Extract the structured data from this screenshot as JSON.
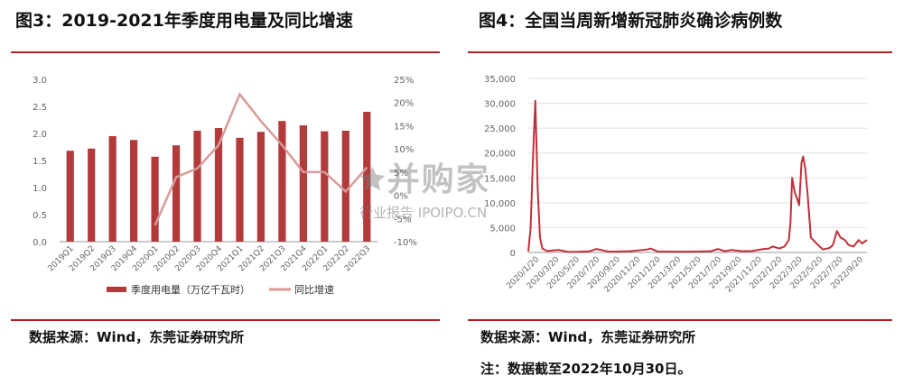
{
  "left": {
    "title": "图3：2019-2021年季度用电量及同比增速",
    "source": "数据来源：Wind，东莞证券研究所",
    "chart_data": {
      "type": "bar",
      "categories": [
        "2019Q1",
        "2019Q2",
        "2019Q3",
        "2019Q4",
        "2020Q1",
        "2020Q2",
        "2020Q3",
        "2020Q4",
        "2021Q1",
        "2021Q2",
        "2021Q3",
        "2021Q4",
        "2022Q1",
        "2022Q2",
        "2022Q3"
      ],
      "series": [
        {
          "name": "季度用电量（万亿千瓦时）",
          "type": "bar",
          "axis": "left",
          "values": [
            1.68,
            1.72,
            1.95,
            1.88,
            1.57,
            1.78,
            2.05,
            2.1,
            1.92,
            2.03,
            2.23,
            2.15,
            2.04,
            2.05,
            2.4
          ]
        },
        {
          "name": "同比增速",
          "type": "line",
          "axis": "right",
          "unit": "%",
          "values": [
            null,
            null,
            null,
            null,
            -6.5,
            3.9,
            5.8,
            10.8,
            21.8,
            16.0,
            10.8,
            5.0,
            5.0,
            0.8,
            6.0
          ]
        }
      ],
      "y_left": {
        "min": 0,
        "max": 3.0,
        "ticks": [
          "0.0",
          "0.5",
          "1.0",
          "1.5",
          "2.0",
          "2.5",
          "3.0"
        ]
      },
      "y_right": {
        "min": -10,
        "max": 25,
        "ticks": [
          "-10%",
          "-5%",
          "0%",
          "5%",
          "10%",
          "15%",
          "20%",
          "25%"
        ]
      },
      "legend": [
        "季度用电量（万亿千瓦时）",
        "同比增速"
      ],
      "colors": {
        "bar": "#b23a3a",
        "line": "#d99a9a"
      }
    }
  },
  "right": {
    "title": "图4：全国当周新增新冠肺炎确诊病例数",
    "source": "数据来源：Wind，东莞证券研究所",
    "note": "注：数据截至2022年10月30日。",
    "chart_data": {
      "type": "line",
      "x_tick_labels": [
        "2020/1/20",
        "2020/3/20",
        "2020/5/20",
        "2020/7/20",
        "2020/9/20",
        "2020/11/20",
        "2021/1/20",
        "2021/3/20",
        "2021/5/20",
        "2021/7/20",
        "2021/9/20",
        "2021/11/20",
        "2022/1/20",
        "2022/3/20",
        "2022/5/20",
        "2022/7/20",
        "2022/9/20"
      ],
      "y_ticks": [
        "0",
        "5,000",
        "10,000",
        "15,000",
        "20,000",
        "25,000",
        "30,000",
        "35,000"
      ],
      "ylim": [
        0,
        35000
      ],
      "series": [
        {
          "values": [
            [
              "2020-01-20",
              200
            ],
            [
              "2020-01-27",
              5000
            ],
            [
              "2020-02-03",
              19000
            ],
            [
              "2020-02-10",
              30500
            ],
            [
              "2020-02-17",
              13000
            ],
            [
              "2020-02-24",
              3000
            ],
            [
              "2020-03-02",
              800
            ],
            [
              "2020-03-16",
              300
            ],
            [
              "2020-04-20",
              500
            ],
            [
              "2020-05-20",
              100
            ],
            [
              "2020-07-20",
              200
            ],
            [
              "2020-08-10",
              700
            ],
            [
              "2020-09-20",
              150
            ],
            [
              "2020-11-20",
              250
            ],
            [
              "2021-01-10",
              600
            ],
            [
              "2021-01-20",
              800
            ],
            [
              "2021-02-10",
              200
            ],
            [
              "2021-03-20",
              150
            ],
            [
              "2021-05-20",
              150
            ],
            [
              "2021-07-20",
              250
            ],
            [
              "2021-08-10",
              700
            ],
            [
              "2021-08-30",
              250
            ],
            [
              "2021-09-20",
              500
            ],
            [
              "2021-10-20",
              250
            ],
            [
              "2021-11-20",
              300
            ],
            [
              "2021-12-25",
              700
            ],
            [
              "2022-01-10",
              800
            ],
            [
              "2022-01-20",
              1200
            ],
            [
              "2022-02-10",
              800
            ],
            [
              "2022-02-25",
              1200
            ],
            [
              "2022-03-10",
              2500
            ],
            [
              "2022-03-15",
              6000
            ],
            [
              "2022-03-20",
              15000
            ],
            [
              "2022-03-28",
              12000
            ],
            [
              "2022-04-03",
              11000
            ],
            [
              "2022-04-10",
              9500
            ],
            [
              "2022-04-17",
              18000
            ],
            [
              "2022-04-22",
              19300
            ],
            [
              "2022-04-28",
              17000
            ],
            [
              "2022-05-05",
              12000
            ],
            [
              "2022-05-15",
              3000
            ],
            [
              "2022-06-01",
              1800
            ],
            [
              "2022-06-20",
              600
            ],
            [
              "2022-07-10",
              900
            ],
            [
              "2022-07-20",
              1500
            ],
            [
              "2022-08-01",
              4300
            ],
            [
              "2022-08-12",
              3000
            ],
            [
              "2022-08-25",
              2500
            ],
            [
              "2022-09-05",
              1500
            ],
            [
              "2022-09-20",
              1200
            ],
            [
              "2022-10-05",
              2500
            ],
            [
              "2022-10-15",
              1800
            ],
            [
              "2022-10-30",
              2500
            ]
          ]
        }
      ],
      "colors": {
        "line": "#c0303a"
      }
    }
  },
  "watermark": {
    "main": "🟊并购家",
    "sub": "行业报告 IPOIPO.CN"
  }
}
